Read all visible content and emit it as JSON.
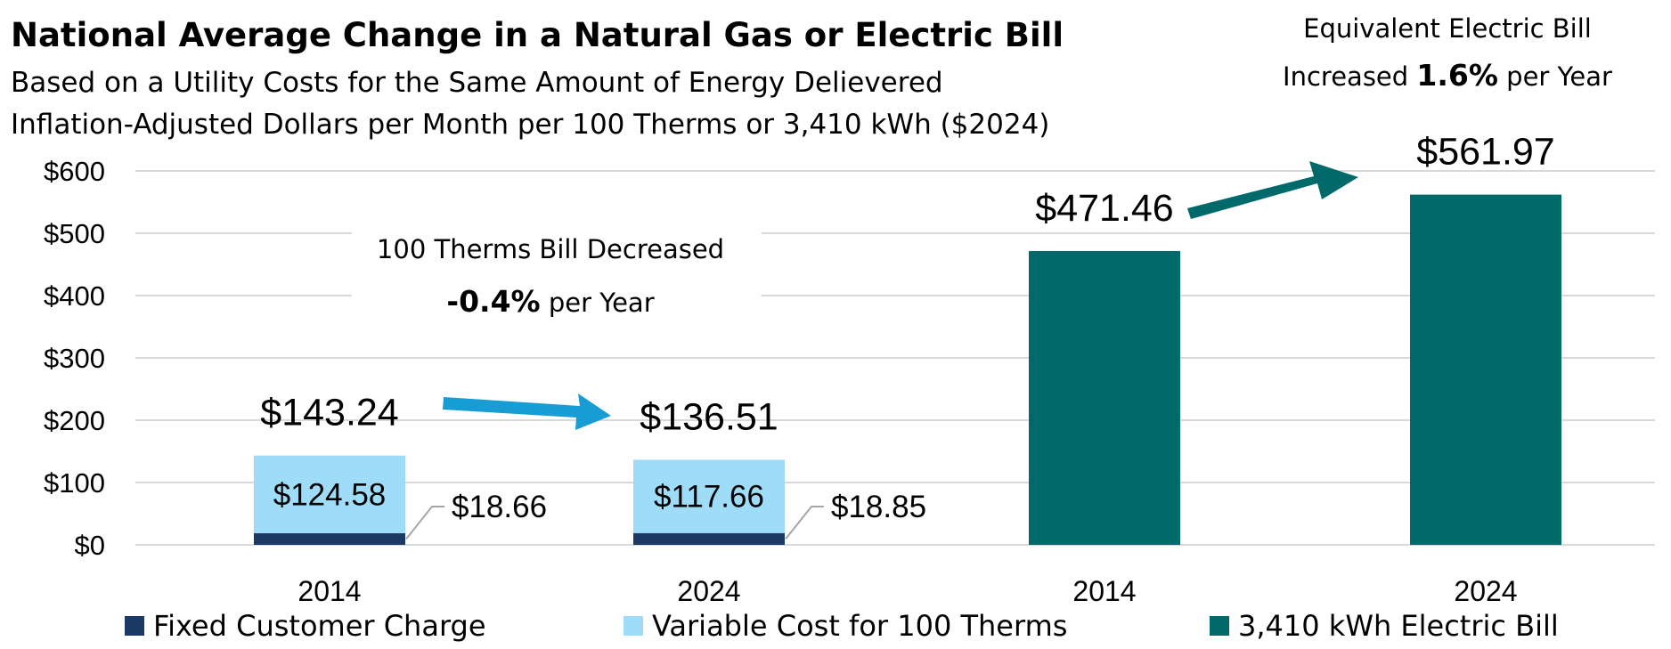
{
  "title": "National Average Change in a Natural Gas or Electric Bill",
  "subtitle_1": "Based on a Utility Costs for the Same Amount of Energy Delievered",
  "subtitle_2": "Inflation-Adjusted Dollars per Month per 100 Therms or 3,410 kWh ($2024)",
  "gas_note": {
    "line1": "100 Therms Bill Decreased",
    "pct": "-0.4%",
    "suffix": " per Year"
  },
  "electric_note": {
    "line1": "Equivalent Electric Bill",
    "prefix": "Increased ",
    "pct": "1.6%",
    "suffix": " per Year"
  },
  "colors": {
    "fixed": "#1b3a66",
    "variable": "#9edcf7",
    "electric": "#006a6b",
    "gas_arrow": "#179dd4",
    "electric_arrow": "#006a6b",
    "grid": "#d9d9d9",
    "leader": "#a6a6a6"
  },
  "chart_data": {
    "type": "bar",
    "stacked": true,
    "categories": [
      "2014",
      "2024",
      "2014",
      "2024"
    ],
    "series": [
      {
        "name": "Fixed Customer Charge",
        "values": [
          18.66,
          18.85,
          null,
          null
        ],
        "labels": [
          "$18.66",
          "$18.85",
          "",
          ""
        ]
      },
      {
        "name": "Variable Cost for 100 Therms",
        "values": [
          124.58,
          117.66,
          null,
          null
        ],
        "labels": [
          "$124.58",
          "$117.66",
          "",
          ""
        ]
      },
      {
        "name": "3,410 kWh Electric Bill",
        "values": [
          null,
          null,
          471.46,
          561.97
        ],
        "labels": [
          "",
          "",
          "",
          ""
        ]
      }
    ],
    "totals": [
      143.24,
      136.51,
      471.46,
      561.97
    ],
    "total_labels": [
      "$143.24",
      "$136.51",
      "$471.46",
      "$561.97"
    ],
    "ylim": [
      0,
      600
    ],
    "yticks": [
      0,
      100,
      200,
      300,
      400,
      500,
      600
    ],
    "ytick_labels": [
      "$0",
      "$100",
      "$200",
      "$300",
      "$400",
      "$500",
      "$600"
    ],
    "grid": true,
    "legend_position": "bottom"
  }
}
